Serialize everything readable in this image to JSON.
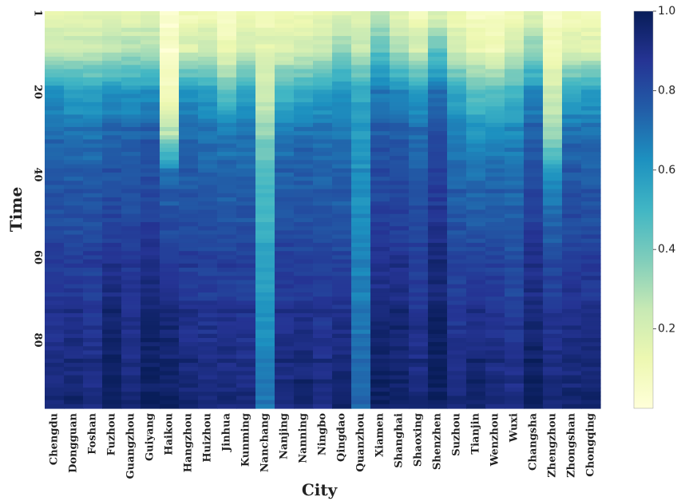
{
  "chart_data": {
    "type": "heatmap",
    "xlabel": "City",
    "ylabel": "Time",
    "x_categories": [
      "Chengdu",
      "Dongguan",
      "Foshan",
      "Fuzhou",
      "Guangzhou",
      "Guiyang",
      "Haikou",
      "Hangzhou",
      "Huizhou",
      "Jinhua",
      "Kunming",
      "Nanchang",
      "Nanjing",
      "Nanning",
      "Ningbo",
      "Qingdao",
      "Quanzhou",
      "Xiamen",
      "Shanghai",
      "Shaoxing",
      "Shenzhen",
      "Suzhou",
      "Tianjin",
      "Wenzhou",
      "Wuxi",
      "Changsha",
      "Zhengzhou",
      "Zhongshan",
      "Chongqing"
    ],
    "y_ticks": [
      "1",
      "20",
      "40",
      "60",
      "80"
    ],
    "y_range": [
      1,
      96
    ],
    "colorbar": {
      "ticks": [
        "0.2",
        "0.4",
        "0.6",
        "0.8",
        "1.0"
      ],
      "range": [
        0,
        1
      ]
    },
    "colormap": "YlGnBu",
    "colors": [
      "#ffffd9",
      "#edf8b1",
      "#c7e9b4",
      "#7fcdbb",
      "#41b6c4",
      "#1d91c0",
      "#225ea8",
      "#253494",
      "#081d58"
    ],
    "profiles": {
      "x": [
        1,
        10,
        20,
        30,
        40,
        50,
        60,
        70,
        80,
        96
      ],
      "city_values": [
        [
          0.15,
          0.25,
          0.62,
          0.72,
          0.76,
          0.8,
          0.84,
          0.87,
          0.9,
          0.93
        ],
        [
          0.15,
          0.24,
          0.58,
          0.7,
          0.75,
          0.8,
          0.84,
          0.88,
          0.92,
          0.96
        ],
        [
          0.15,
          0.24,
          0.58,
          0.7,
          0.75,
          0.8,
          0.84,
          0.86,
          0.89,
          0.92
        ],
        [
          0.16,
          0.26,
          0.62,
          0.74,
          0.78,
          0.83,
          0.88,
          0.93,
          0.97,
          0.99
        ],
        [
          0.15,
          0.3,
          0.62,
          0.73,
          0.77,
          0.81,
          0.85,
          0.88,
          0.91,
          0.94
        ],
        [
          0.16,
          0.3,
          0.62,
          0.76,
          0.8,
          0.85,
          0.9,
          0.94,
          0.97,
          0.99
        ],
        [
          0.03,
          0.05,
          0.1,
          0.28,
          0.72,
          0.8,
          0.85,
          0.9,
          0.95,
          0.98
        ],
        [
          0.1,
          0.2,
          0.62,
          0.72,
          0.76,
          0.8,
          0.84,
          0.88,
          0.91,
          0.95
        ],
        [
          0.12,
          0.24,
          0.58,
          0.7,
          0.74,
          0.79,
          0.83,
          0.87,
          0.9,
          0.94
        ],
        [
          0.05,
          0.12,
          0.45,
          0.68,
          0.74,
          0.78,
          0.83,
          0.87,
          0.9,
          0.94
        ],
        [
          0.12,
          0.22,
          0.55,
          0.7,
          0.74,
          0.78,
          0.82,
          0.86,
          0.89,
          0.93
        ],
        [
          0.1,
          0.18,
          0.22,
          0.35,
          0.48,
          0.52,
          0.56,
          0.6,
          0.64,
          0.7
        ],
        [
          0.1,
          0.2,
          0.5,
          0.68,
          0.74,
          0.79,
          0.83,
          0.87,
          0.9,
          0.93
        ],
        [
          0.12,
          0.22,
          0.55,
          0.7,
          0.75,
          0.8,
          0.84,
          0.88,
          0.92,
          0.96
        ],
        [
          0.15,
          0.25,
          0.58,
          0.7,
          0.74,
          0.78,
          0.82,
          0.86,
          0.89,
          0.92
        ],
        [
          0.18,
          0.35,
          0.62,
          0.7,
          0.74,
          0.78,
          0.82,
          0.87,
          0.92,
          0.97
        ],
        [
          0.16,
          0.25,
          0.55,
          0.6,
          0.62,
          0.64,
          0.66,
          0.68,
          0.7,
          0.72
        ],
        [
          0.25,
          0.45,
          0.68,
          0.76,
          0.8,
          0.84,
          0.88,
          0.92,
          0.96,
          0.99
        ],
        [
          0.15,
          0.3,
          0.64,
          0.76,
          0.8,
          0.84,
          0.88,
          0.92,
          0.95,
          0.98
        ],
        [
          0.1,
          0.22,
          0.58,
          0.72,
          0.76,
          0.8,
          0.84,
          0.87,
          0.9,
          0.93
        ],
        [
          0.18,
          0.45,
          0.7,
          0.8,
          0.84,
          0.88,
          0.92,
          0.95,
          0.98,
          0.99
        ],
        [
          0.12,
          0.22,
          0.55,
          0.68,
          0.73,
          0.78,
          0.82,
          0.86,
          0.89,
          0.93
        ],
        [
          0.08,
          0.15,
          0.45,
          0.62,
          0.7,
          0.76,
          0.82,
          0.88,
          0.92,
          0.96
        ],
        [
          0.06,
          0.12,
          0.45,
          0.64,
          0.72,
          0.78,
          0.83,
          0.87,
          0.9,
          0.93
        ],
        [
          0.1,
          0.22,
          0.5,
          0.64,
          0.7,
          0.76,
          0.8,
          0.84,
          0.88,
          0.92
        ],
        [
          0.18,
          0.35,
          0.64,
          0.76,
          0.8,
          0.85,
          0.89,
          0.93,
          0.96,
          0.99
        ],
        [
          0.05,
          0.1,
          0.22,
          0.3,
          0.62,
          0.74,
          0.8,
          0.86,
          0.9,
          0.94
        ],
        [
          0.1,
          0.2,
          0.55,
          0.72,
          0.77,
          0.81,
          0.85,
          0.89,
          0.92,
          0.95
        ],
        [
          0.08,
          0.18,
          0.58,
          0.7,
          0.76,
          0.8,
          0.85,
          0.89,
          0.93,
          0.96
        ]
      ]
    }
  }
}
